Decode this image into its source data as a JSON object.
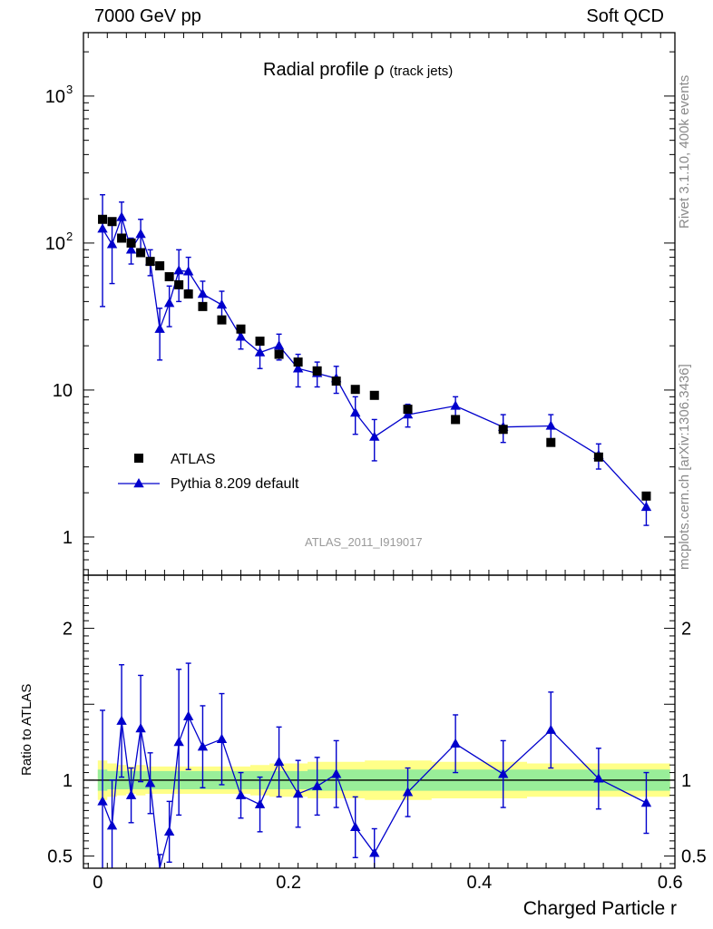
{
  "header": {
    "left": "7000 GeV pp",
    "right": "Soft QCD"
  },
  "side_text": {
    "rivet": "Rivet 3.1.10,  400k events",
    "ref": "mcplots.cern.ch [arXiv:1306.3436]"
  },
  "analysis_label": "ATLAS_2011_I919017",
  "colors": {
    "mc": "#0000cc",
    "data": "#000000",
    "band_inner": "#99ee99",
    "band_outer": "#ffff88"
  },
  "chart_data": [
    {
      "type": "scatter",
      "panel": "main",
      "title": "Radial profile",
      "title_symbol": "ρ",
      "title_suffix": "(track jets)",
      "xlabel": "Charged Particle r",
      "ylabel": "",
      "yscale": "log",
      "xlim": [
        -0.015,
        0.605
      ],
      "ylim": [
        0.55,
        2700
      ],
      "y_ticks": [
        {
          "value": 1,
          "label": "1"
        },
        {
          "value": 10,
          "label": "10"
        },
        {
          "value": 100,
          "label": "10",
          "sup": "2"
        },
        {
          "value": 1000,
          "label": "10",
          "sup": "3"
        }
      ],
      "legend_position": "lower-left",
      "series": [
        {
          "name": "ATLAS",
          "marker": "square",
          "x": [
            0.005,
            0.015,
            0.025,
            0.035,
            0.045,
            0.055,
            0.065,
            0.075,
            0.085,
            0.095,
            0.11,
            0.13,
            0.15,
            0.17,
            0.19,
            0.21,
            0.23,
            0.25,
            0.27,
            0.29,
            0.325,
            0.375,
            0.425,
            0.475,
            0.525,
            0.575
          ],
          "y": [
            145,
            140,
            108,
            100,
            86,
            75,
            70,
            59,
            52,
            45,
            37,
            30,
            26,
            21.5,
            17.5,
            15.5,
            13.5,
            11.5,
            10.1,
            9.2,
            7.4,
            6.3,
            5.4,
            4.4,
            3.5,
            1.9
          ]
        },
        {
          "name": "Pythia 8.209 default",
          "marker": "triangle",
          "line": true,
          "x": [
            0.005,
            0.015,
            0.025,
            0.035,
            0.045,
            0.055,
            0.065,
            0.075,
            0.085,
            0.095,
            0.11,
            0.13,
            0.15,
            0.17,
            0.19,
            0.21,
            0.23,
            0.25,
            0.27,
            0.29,
            0.325,
            0.375,
            0.425,
            0.475,
            0.525,
            0.575
          ],
          "y": [
            125,
            98,
            150,
            90,
            115,
            75,
            26,
            39,
            65,
            64,
            45,
            38,
            23,
            18,
            20,
            14,
            13,
            12,
            7,
            4.8,
            6.8,
            7.8,
            5.6,
            5.7,
            3.6,
            1.6
          ],
          "yerr_lo": [
            88,
            45,
            40,
            18,
            30,
            15,
            10,
            12,
            25,
            16,
            10,
            9,
            4,
            4,
            4,
            3.5,
            2.5,
            2.5,
            2,
            1.5,
            1.2,
            1.2,
            1.2,
            1.1,
            0.7,
            0.4
          ],
          "yerr_hi": [
            88,
            45,
            40,
            18,
            30,
            15,
            10,
            12,
            25,
            16,
            10,
            9,
            4,
            4,
            4,
            3.5,
            2.5,
            2.5,
            2,
            1.5,
            1.2,
            1.2,
            1.2,
            1.1,
            0.7,
            0.4
          ]
        }
      ]
    },
    {
      "type": "line",
      "panel": "ratio",
      "xlabel": "Charged Particle r",
      "ylabel": "Ratio to ATLAS",
      "xlim": [
        -0.015,
        0.605
      ],
      "ylim": [
        0.42,
        2.35
      ],
      "x_ticks": [
        {
          "value": 0,
          "label": "0"
        },
        {
          "value": 0.2,
          "label": "0.2"
        },
        {
          "value": 0.4,
          "label": "0.4"
        },
        {
          "value": 0.6,
          "label": "0.6"
        }
      ],
      "y_ticks": [
        {
          "value": 0.5,
          "label": "0.5"
        },
        {
          "value": 1,
          "label": "1"
        },
        {
          "value": 2,
          "label": "2"
        }
      ],
      "reference_line": 1,
      "band": {
        "x_edges": [
          0,
          0.01,
          0.02,
          0.03,
          0.04,
          0.05,
          0.06,
          0.07,
          0.08,
          0.09,
          0.1,
          0.12,
          0.14,
          0.16,
          0.18,
          0.2,
          0.22,
          0.24,
          0.26,
          0.28,
          0.3,
          0.35,
          0.4,
          0.45,
          0.5,
          0.55,
          0.6
        ],
        "inner_half_width": [
          0.07,
          0.06,
          0.06,
          0.06,
          0.06,
          0.06,
          0.06,
          0.06,
          0.06,
          0.06,
          0.06,
          0.06,
          0.06,
          0.06,
          0.06,
          0.06,
          0.07,
          0.07,
          0.07,
          0.07,
          0.07,
          0.07,
          0.07,
          0.07,
          0.07,
          0.07
        ],
        "outer_half_width": [
          0.13,
          0.11,
          0.1,
          0.09,
          0.1,
          0.09,
          0.09,
          0.09,
          0.09,
          0.09,
          0.09,
          0.09,
          0.09,
          0.1,
          0.11,
          0.11,
          0.12,
          0.12,
          0.12,
          0.13,
          0.13,
          0.12,
          0.12,
          0.11,
          0.11,
          0.11
        ]
      },
      "series": [
        {
          "name": "Pythia 8.209 default",
          "marker": "triangle",
          "x": [
            0.005,
            0.015,
            0.025,
            0.035,
            0.045,
            0.055,
            0.065,
            0.075,
            0.085,
            0.095,
            0.11,
            0.13,
            0.15,
            0.17,
            0.19,
            0.21,
            0.23,
            0.25,
            0.27,
            0.29,
            0.325,
            0.375,
            0.425,
            0.475,
            0.525,
            0.575
          ],
          "y": [
            0.86,
            0.7,
            1.39,
            0.9,
            1.34,
            0.98,
            0.37,
            0.66,
            1.25,
            1.42,
            1.22,
            1.27,
            0.9,
            0.84,
            1.12,
            0.91,
            0.96,
            1.04,
            0.69,
            0.52,
            0.92,
            1.24,
            1.04,
            1.33,
            1.01,
            0.85
          ],
          "yerr_lo": [
            0.6,
            0.3,
            0.37,
            0.18,
            0.35,
            0.2,
            0.14,
            0.2,
            0.48,
            0.35,
            0.27,
            0.3,
            0.15,
            0.18,
            0.23,
            0.22,
            0.19,
            0.22,
            0.2,
            0.16,
            0.16,
            0.19,
            0.22,
            0.25,
            0.2,
            0.2
          ],
          "yerr_hi": [
            0.6,
            0.3,
            0.37,
            0.18,
            0.35,
            0.2,
            0.14,
            0.2,
            0.48,
            0.35,
            0.27,
            0.3,
            0.15,
            0.18,
            0.23,
            0.22,
            0.19,
            0.22,
            0.2,
            0.16,
            0.16,
            0.19,
            0.22,
            0.25,
            0.2,
            0.2
          ]
        }
      ]
    }
  ]
}
